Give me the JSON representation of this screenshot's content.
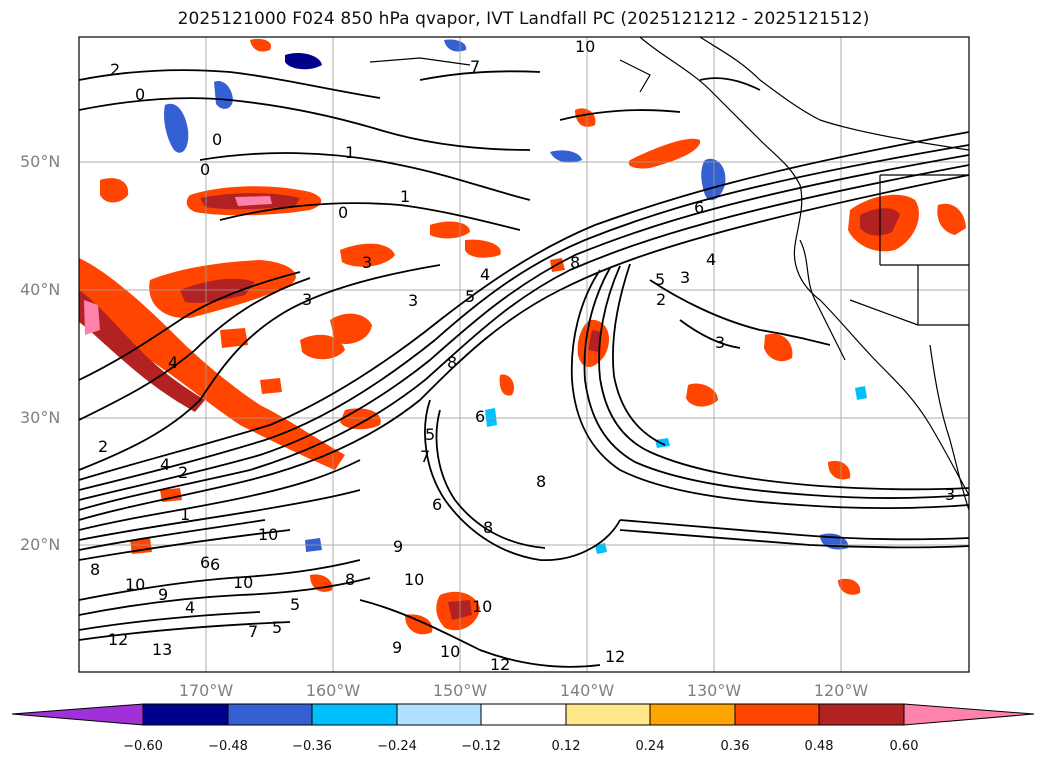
{
  "title": "2025121000 F024 850 hPa qvapor, IVT Landfall PC (2025121212 - 2025121512)",
  "map": {
    "lat_labels": [
      "50°N",
      "40°N",
      "30°N",
      "20°N"
    ],
    "lon_labels": [
      "170°W",
      "160°W",
      "150°W",
      "140°W",
      "130°W",
      "120°W"
    ],
    "contour_labels": [
      "2",
      "0",
      "1",
      "0",
      "0",
      "1",
      "0",
      "10",
      "8",
      "6",
      "7",
      "5",
      "3",
      "4",
      "3",
      "3",
      "5",
      "4",
      "8",
      "6",
      "5",
      "2",
      "3",
      "4",
      "3",
      "2",
      "4",
      "2",
      "8",
      "1",
      "10",
      "10",
      "8",
      "6",
      "9",
      "8",
      "10",
      "9",
      "9",
      "10",
      "12",
      "12",
      "13",
      "12",
      "10",
      "10",
      "4",
      "5",
      "7",
      "6",
      "5",
      "3",
      "8",
      "6",
      "7"
    ]
  },
  "colorbar": {
    "colors": [
      "#a030d8",
      "#00008c",
      "#3460d4",
      "#00bfff",
      "#b0e2ff",
      "#ffffff",
      "#ffe88c",
      "#ffa500",
      "#ff4500",
      "#b22222",
      "#ff82ab"
    ],
    "tick_labels": [
      "−0.60",
      "−0.48",
      "−0.36",
      "−0.24",
      "−0.12",
      "0.12",
      "0.24",
      "0.36",
      "0.48",
      "0.60"
    ]
  }
}
